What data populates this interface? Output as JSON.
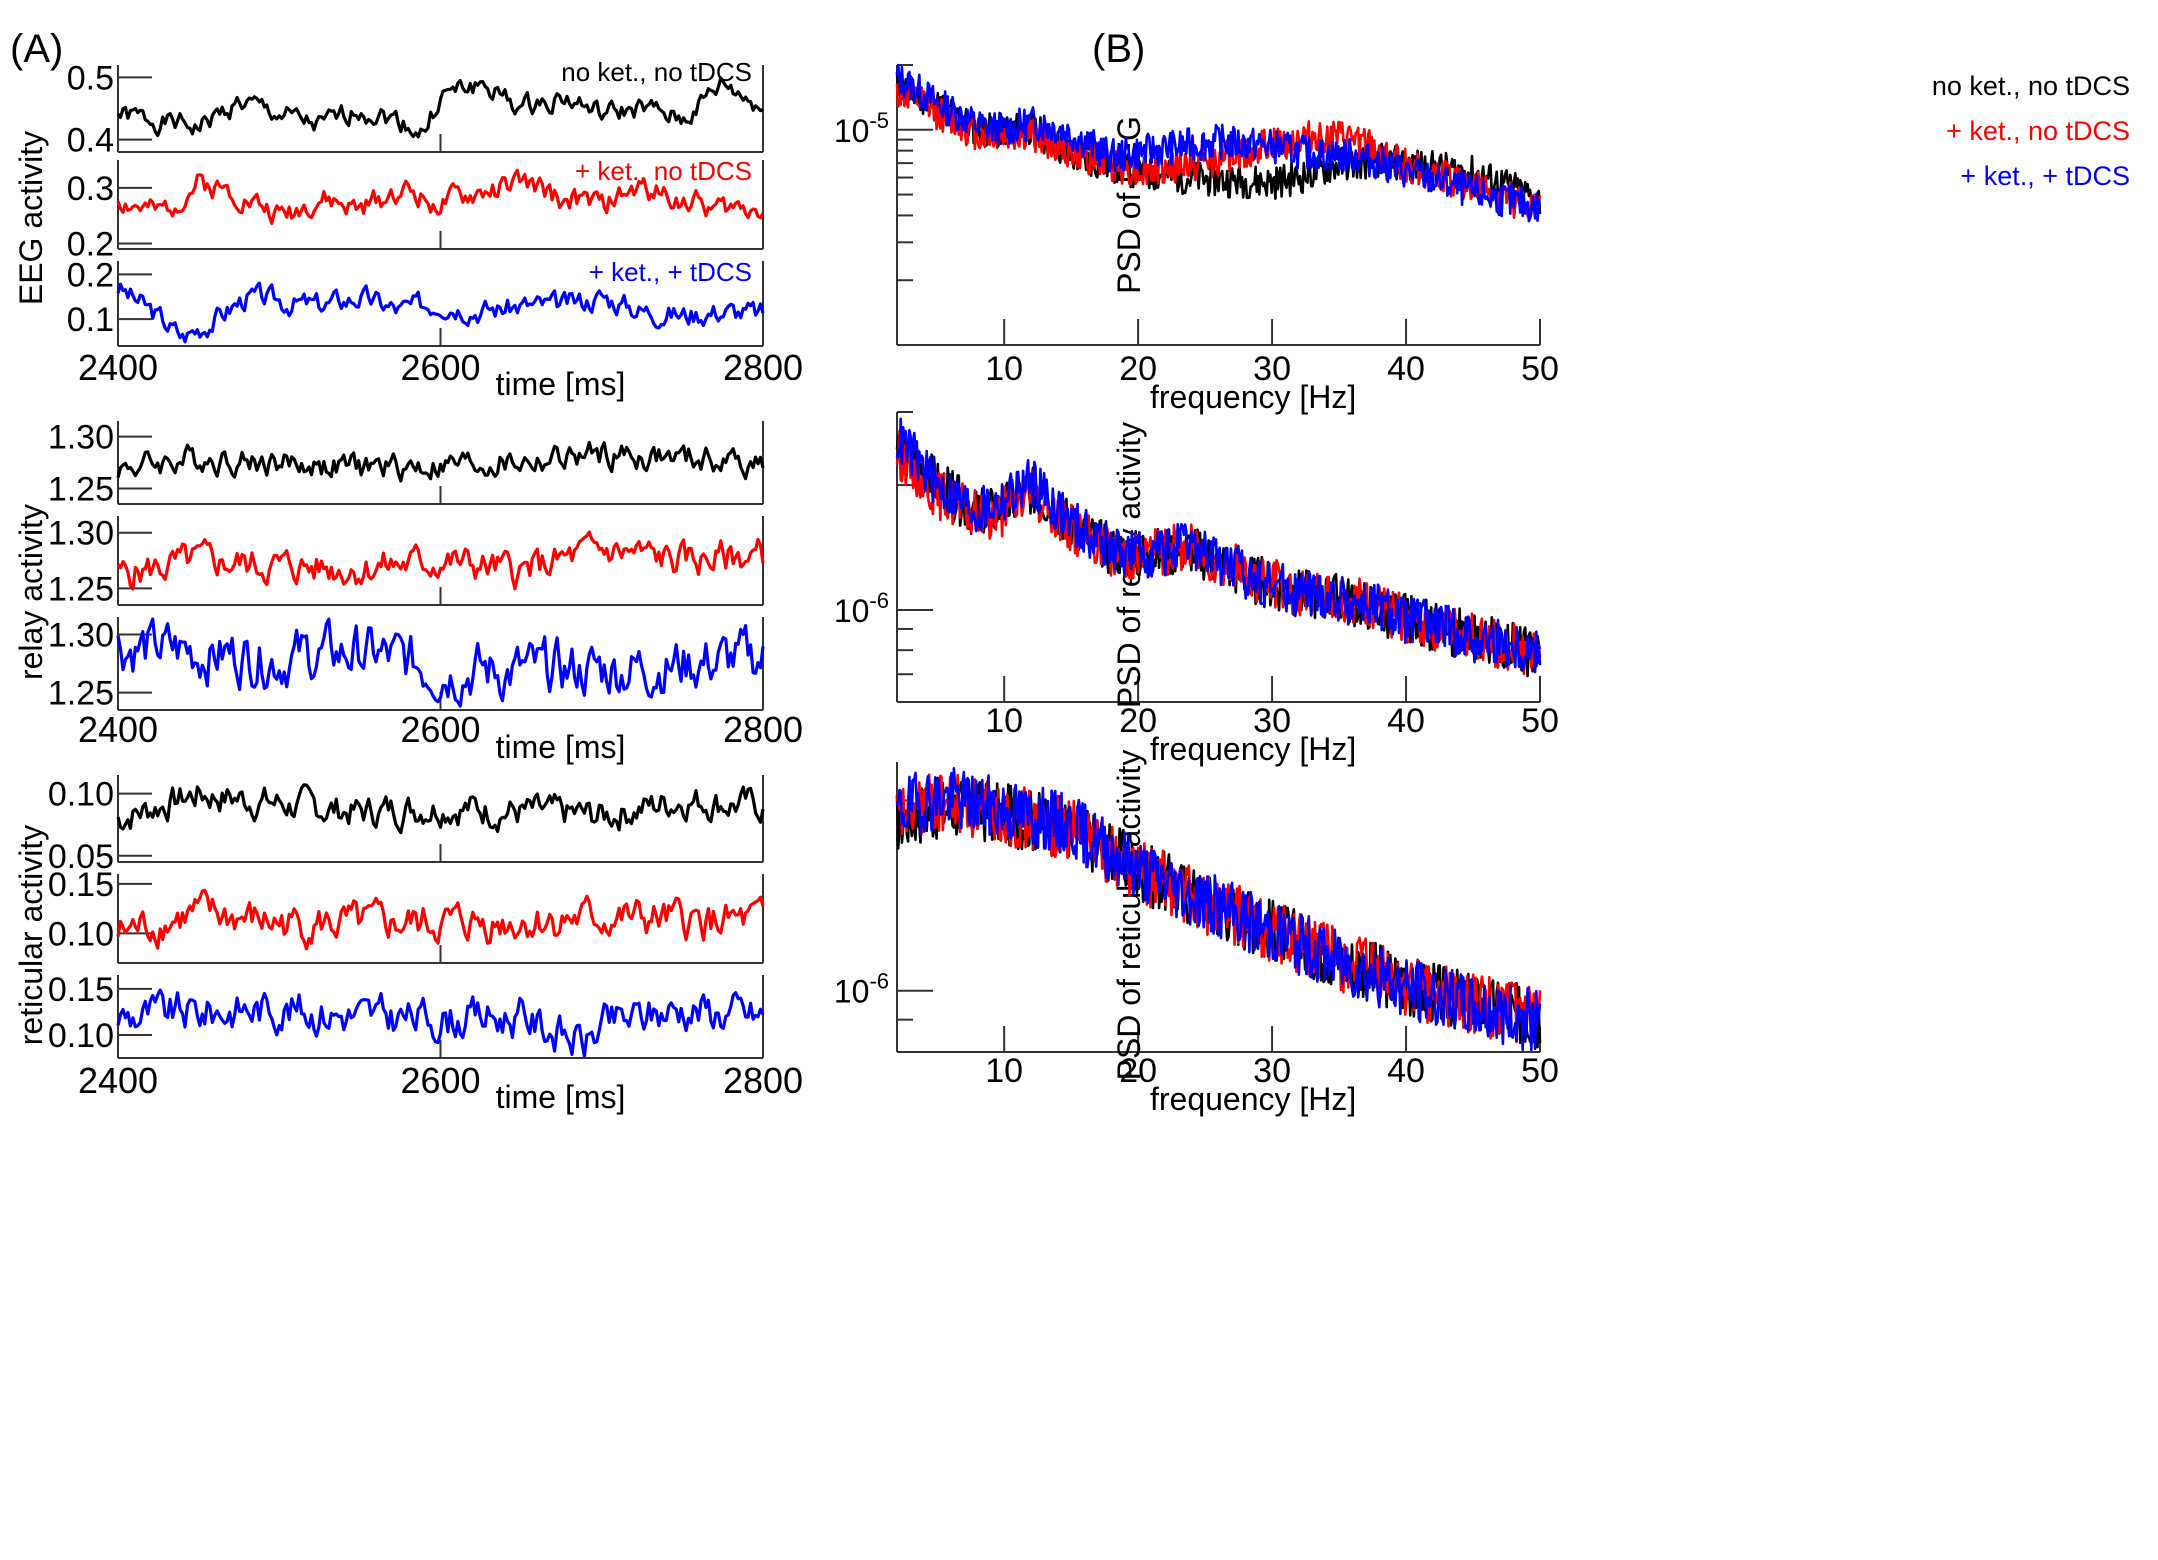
{
  "colors": {
    "none": "#000000",
    "ket": "#ff0000",
    "tdcs": "#0000ff",
    "axis": "#333333"
  },
  "conditions": [
    "none",
    "ket",
    "tdcs"
  ],
  "panel_a": {
    "label": "(A)",
    "legend": {
      "none": "no ket., no tDCS",
      "ket": "+ ket., no tDCS",
      "tdcs": "+ ket., + tDCS"
    },
    "xlabel": "time [ms]",
    "xticks": [
      {
        "v": 2400,
        "t": "2400"
      },
      {
        "v": 2600,
        "t": "2600"
      },
      {
        "v": 2800,
        "t": "2800"
      }
    ]
  },
  "panel_b": {
    "label": "(B)",
    "legend": {
      "none": "no ket., no tDCS",
      "ket": "+ ket., no tDCS",
      "tdcs": "+ ket., + tDCS"
    },
    "xlabel": "frequency [Hz]",
    "xticks": [
      {
        "v": 10,
        "t": "10"
      },
      {
        "v": 20,
        "t": "20"
      },
      {
        "v": 30,
        "t": "30"
      },
      {
        "v": 40,
        "t": "40"
      },
      {
        "v": 50,
        "t": "50"
      }
    ]
  },
  "chart_data": [
    {
      "id": "eeg-time",
      "type": "line",
      "panel": "A",
      "ylabel": "EEG activity",
      "xlim": [
        2400,
        2800
      ],
      "series": [
        {
          "name": "no ket., no tDCS",
          "cond": "none",
          "ylim": [
            0.38,
            0.52
          ],
          "yticks": [
            {
              "v": 0.4,
              "t": "0.4"
            },
            {
              "v": 0.5,
              "t": "0.5"
            }
          ],
          "x": [
            2400,
            2425,
            2450,
            2475,
            2500,
            2525,
            2550,
            2575,
            2590,
            2600,
            2625,
            2650,
            2675,
            2700,
            2725,
            2750,
            2775,
            2800
          ],
          "y": [
            0.44,
            0.43,
            0.42,
            0.46,
            0.44,
            0.42,
            0.45,
            0.43,
            0.41,
            0.47,
            0.49,
            0.45,
            0.47,
            0.44,
            0.45,
            0.43,
            0.49,
            0.45
          ],
          "noise": 0.008,
          "seed": 1
        },
        {
          "name": "+ ket., no tDCS",
          "cond": "ket",
          "ylim": [
            0.19,
            0.35
          ],
          "yticks": [
            {
              "v": 0.2,
              "t": "0.2"
            },
            {
              "v": 0.3,
              "t": "0.3"
            }
          ],
          "x": [
            2400,
            2425,
            2450,
            2475,
            2500,
            2525,
            2550,
            2575,
            2600,
            2625,
            2650,
            2675,
            2700,
            2725,
            2750,
            2775,
            2800
          ],
          "y": [
            0.28,
            0.25,
            0.31,
            0.29,
            0.25,
            0.28,
            0.26,
            0.3,
            0.27,
            0.29,
            0.31,
            0.28,
            0.27,
            0.3,
            0.28,
            0.26,
            0.27
          ],
          "noise": 0.01,
          "seed": 2
        },
        {
          "name": "+ ket., + tDCS",
          "cond": "tdcs",
          "ylim": [
            0.04,
            0.23
          ],
          "yticks": [
            {
              "v": 0.1,
              "t": "0.1"
            },
            {
              "v": 0.2,
              "t": "0.2"
            }
          ],
          "x": [
            2400,
            2420,
            2440,
            2460,
            2480,
            2500,
            2525,
            2550,
            2575,
            2600,
            2625,
            2650,
            2675,
            2700,
            2725,
            2750,
            2775,
            2800
          ],
          "y": [
            0.17,
            0.12,
            0.06,
            0.1,
            0.15,
            0.14,
            0.13,
            0.15,
            0.12,
            0.14,
            0.12,
            0.13,
            0.13,
            0.15,
            0.12,
            0.11,
            0.12,
            0.11
          ],
          "noise": 0.012,
          "seed": 3
        }
      ]
    },
    {
      "id": "relay-time",
      "type": "line",
      "panel": "A",
      "ylabel": "relay  activity",
      "xlim": [
        2400,
        2800
      ],
      "series": [
        {
          "name": "no ket., no tDCS",
          "cond": "none",
          "ylim": [
            1.235,
            1.315
          ],
          "yticks": [
            {
              "v": 1.25,
              "t": "1.25"
            },
            {
              "v": 1.3,
              "t": "1.30"
            }
          ],
          "x": [
            2400,
            2450,
            2500,
            2550,
            2600,
            2650,
            2700,
            2750,
            2800
          ],
          "y": [
            1.27,
            1.28,
            1.275,
            1.27,
            1.272,
            1.275,
            1.282,
            1.278,
            1.275
          ],
          "noise": 0.006,
          "seed": 4
        },
        {
          "name": "+ ket., no tDCS",
          "cond": "ket",
          "ylim": [
            1.235,
            1.315
          ],
          "yticks": [
            {
              "v": 1.25,
              "t": "1.25"
            },
            {
              "v": 1.3,
              "t": "1.30"
            }
          ],
          "x": [
            2400,
            2450,
            2500,
            2550,
            2600,
            2650,
            2700,
            2750,
            2800
          ],
          "y": [
            1.262,
            1.275,
            1.27,
            1.268,
            1.275,
            1.265,
            1.285,
            1.275,
            1.28
          ],
          "noise": 0.007,
          "seed": 5
        },
        {
          "name": "+ ket., + tDCS",
          "cond": "tdcs",
          "ylim": [
            1.235,
            1.315
          ],
          "yticks": [
            {
              "v": 1.25,
              "t": "1.25"
            },
            {
              "v": 1.3,
              "t": "1.30"
            }
          ],
          "x": [
            2400,
            2450,
            2500,
            2550,
            2600,
            2650,
            2700,
            2750,
            2800
          ],
          "y": [
            1.29,
            1.285,
            1.28,
            1.285,
            1.27,
            1.268,
            1.27,
            1.275,
            1.28
          ],
          "noise": 0.011,
          "seed": 6
        }
      ]
    },
    {
      "id": "reticular-time",
      "type": "line",
      "panel": "A",
      "ylabel": "reticular activity",
      "xlim": [
        2400,
        2800
      ],
      "series": [
        {
          "name": "no ket., no tDCS",
          "cond": "none",
          "ylim": [
            0.045,
            0.115
          ],
          "yticks": [
            {
              "v": 0.05,
              "t": "0.05"
            },
            {
              "v": 0.1,
              "t": "0.10"
            }
          ],
          "x": [
            2400,
            2450,
            2500,
            2550,
            2600,
            2650,
            2700,
            2750,
            2800
          ],
          "y": [
            0.08,
            0.1,
            0.092,
            0.085,
            0.09,
            0.085,
            0.082,
            0.095,
            0.09
          ],
          "noise": 0.006,
          "seed": 7
        },
        {
          "name": "+ ket., no tDCS",
          "cond": "ket",
          "ylim": [
            0.07,
            0.16
          ],
          "yticks": [
            {
              "v": 0.1,
              "t": "0.10"
            },
            {
              "v": 0.15,
              "t": "0.15"
            }
          ],
          "x": [
            2400,
            2450,
            2500,
            2550,
            2600,
            2650,
            2700,
            2750,
            2800
          ],
          "y": [
            0.1,
            0.12,
            0.11,
            0.108,
            0.11,
            0.112,
            0.115,
            0.112,
            0.11
          ],
          "noise": 0.009,
          "seed": 8
        },
        {
          "name": "+ ket., + tDCS",
          "cond": "tdcs",
          "ylim": [
            0.075,
            0.165
          ],
          "yticks": [
            {
              "v": 0.1,
              "t": "0.10"
            },
            {
              "v": 0.15,
              "t": "0.15"
            }
          ],
          "x": [
            2400,
            2450,
            2500,
            2550,
            2600,
            2650,
            2690,
            2700,
            2750,
            2800
          ],
          "y": [
            0.12,
            0.125,
            0.13,
            0.12,
            0.118,
            0.12,
            0.09,
            0.11,
            0.13,
            0.12
          ],
          "noise": 0.01,
          "seed": 9
        }
      ]
    },
    {
      "id": "eeg-psd",
      "type": "line",
      "panel": "B",
      "ylabel": "PSD of EEG",
      "yscale": "log",
      "xlim": [
        2,
        50
      ],
      "ylim": [
        1e-06,
        2e-05
      ],
      "ytick_label": {
        "v": 1e-05,
        "t": "10-5"
      },
      "series": [
        {
          "name": "no ket., no tDCS",
          "cond": "none",
          "x": [
            2,
            5,
            8,
            10,
            12,
            15,
            20,
            25,
            30,
            32,
            35,
            38,
            40,
            45,
            50
          ],
          "y": [
            1.6e-05,
            1.3e-05,
            1e-05,
            1e-05,
            1.02e-05,
            7.5e-06,
            6.3e-06,
            5.9e-06,
            5.7e-06,
            6e-06,
            6.9e-06,
            7.2e-06,
            6.9e-06,
            6.3e-06,
            4.7e-06
          ],
          "noise": 0.08,
          "seed": 11
        },
        {
          "name": "+ ket., no tDCS",
          "cond": "ket",
          "x": [
            2,
            5,
            8,
            10,
            12,
            15,
            20,
            25,
            30,
            33,
            36,
            40,
            45,
            50
          ],
          "y": [
            1.5e-05,
            1.2e-05,
            9.5e-06,
            9.3e-06,
            9.5e-06,
            7.8e-06,
            6.4e-06,
            7e-06,
            8.5e-06,
            9.3e-06,
            9e-06,
            6.8e-06,
            5.4e-06,
            4.2e-06
          ],
          "noise": 0.08,
          "seed": 12
        },
        {
          "name": "+ ket., + tDCS",
          "cond": "tdcs",
          "x": [
            2,
            5,
            8,
            10,
            12,
            14,
            18,
            22,
            26,
            30,
            33,
            36,
            40,
            45,
            50
          ],
          "y": [
            1.75e-05,
            1.32e-05,
            1.05e-05,
            1e-05,
            1.08e-05,
            1.02e-05,
            7.5e-06,
            8.2e-06,
            8.8e-06,
            8.4e-06,
            7.7e-06,
            7.6e-06,
            6.4e-06,
            5.1e-06,
            4.3e-06
          ],
          "noise": 0.08,
          "seed": 13
        }
      ]
    },
    {
      "id": "relay-psd",
      "type": "line",
      "panel": "B",
      "ylabel": "PSD of relay  activity",
      "yscale": "log",
      "xlim": [
        2,
        50
      ],
      "ylim": [
        6e-07,
        3e-06
      ],
      "ytick_label": {
        "v": 1e-06,
        "t": "10-6"
      },
      "series": [
        {
          "name": "no ket., no tDCS",
          "cond": "none",
          "x": [
            2,
            5,
            8,
            10,
            12,
            15,
            18,
            20,
            24,
            28,
            32,
            36,
            40,
            45,
            50
          ],
          "y": [
            2.5e-06,
            2e-06,
            1.7e-06,
            1.75e-06,
            1.95e-06,
            1.6e-06,
            1.38e-06,
            1.35e-06,
            1.4e-06,
            1.2e-06,
            1.1e-06,
            1.05e-06,
            9.5e-07,
            8.6e-07,
            7.8e-07
          ],
          "noise": 0.06,
          "seed": 14
        },
        {
          "name": "+ ket., no tDCS",
          "cond": "ket",
          "x": [
            2,
            5,
            8,
            10,
            12,
            15,
            18,
            20,
            24,
            28,
            32,
            36,
            40,
            45,
            50
          ],
          "y": [
            2.4e-06,
            1.9e-06,
            1.68e-06,
            1.72e-06,
            1.9e-06,
            1.58e-06,
            1.37e-06,
            1.35e-06,
            1.42e-06,
            1.22e-06,
            1.1e-06,
            1.05e-06,
            9.5e-07,
            8.6e-07,
            7.8e-07
          ],
          "noise": 0.06,
          "seed": 15
        },
        {
          "name": "+ ket., + tDCS",
          "cond": "tdcs",
          "x": [
            2,
            5,
            8,
            10,
            12,
            15,
            18,
            20,
            24,
            28,
            32,
            36,
            40,
            45,
            50
          ],
          "y": [
            2.6e-06,
            2e-06,
            1.72e-06,
            1.85e-06,
            2.05e-06,
            1.62e-06,
            1.4e-06,
            1.36e-06,
            1.42e-06,
            1.22e-06,
            1.1e-06,
            1.05e-06,
            9.5e-07,
            8.6e-07,
            7.8e-07
          ],
          "noise": 0.06,
          "seed": 16
        }
      ]
    },
    {
      "id": "reticular-psd",
      "type": "line",
      "panel": "B",
      "ylabel": "PSD of reticular activity",
      "yscale": "log",
      "xlim": [
        2,
        50
      ],
      "ylim": [
        8e-07,
        2.3e-06
      ],
      "ytick_label": {
        "v": 1e-06,
        "t": "10-6"
      },
      "series": [
        {
          "name": "no ket., no tDCS",
          "cond": "none",
          "x": [
            2,
            4,
            6,
            10,
            15,
            20,
            25,
            30,
            35,
            40,
            45,
            50
          ],
          "y": [
            1.85e-06,
            1.92e-06,
            1.95e-06,
            1.9e-06,
            1.8e-06,
            1.55e-06,
            1.38e-06,
            1.25e-06,
            1.12e-06,
            1.02e-06,
            9.5e-07,
            9e-07
          ],
          "noise": 0.05,
          "seed": 17
        },
        {
          "name": "+ ket., no tDCS",
          "cond": "ket",
          "x": [
            2,
            4,
            6,
            10,
            15,
            20,
            25,
            30,
            35,
            40,
            45,
            50
          ],
          "y": [
            1.88e-06,
            1.97e-06,
            1.98e-06,
            1.9e-06,
            1.8e-06,
            1.55e-06,
            1.38e-06,
            1.24e-06,
            1.12e-06,
            1.02e-06,
            9.5e-07,
            9e-07
          ],
          "noise": 0.05,
          "seed": 18
        },
        {
          "name": "+ ket., + tDCS",
          "cond": "tdcs",
          "x": [
            2,
            4,
            6,
            10,
            15,
            20,
            25,
            30,
            35,
            40,
            45,
            50
          ],
          "y": [
            1.92e-06,
            2e-06,
            2.02e-06,
            1.93e-06,
            1.82e-06,
            1.56e-06,
            1.38e-06,
            1.24e-06,
            1.11e-06,
            1.01e-06,
            9.4e-07,
            8.9e-07
          ],
          "noise": 0.05,
          "seed": 19
        }
      ]
    }
  ]
}
